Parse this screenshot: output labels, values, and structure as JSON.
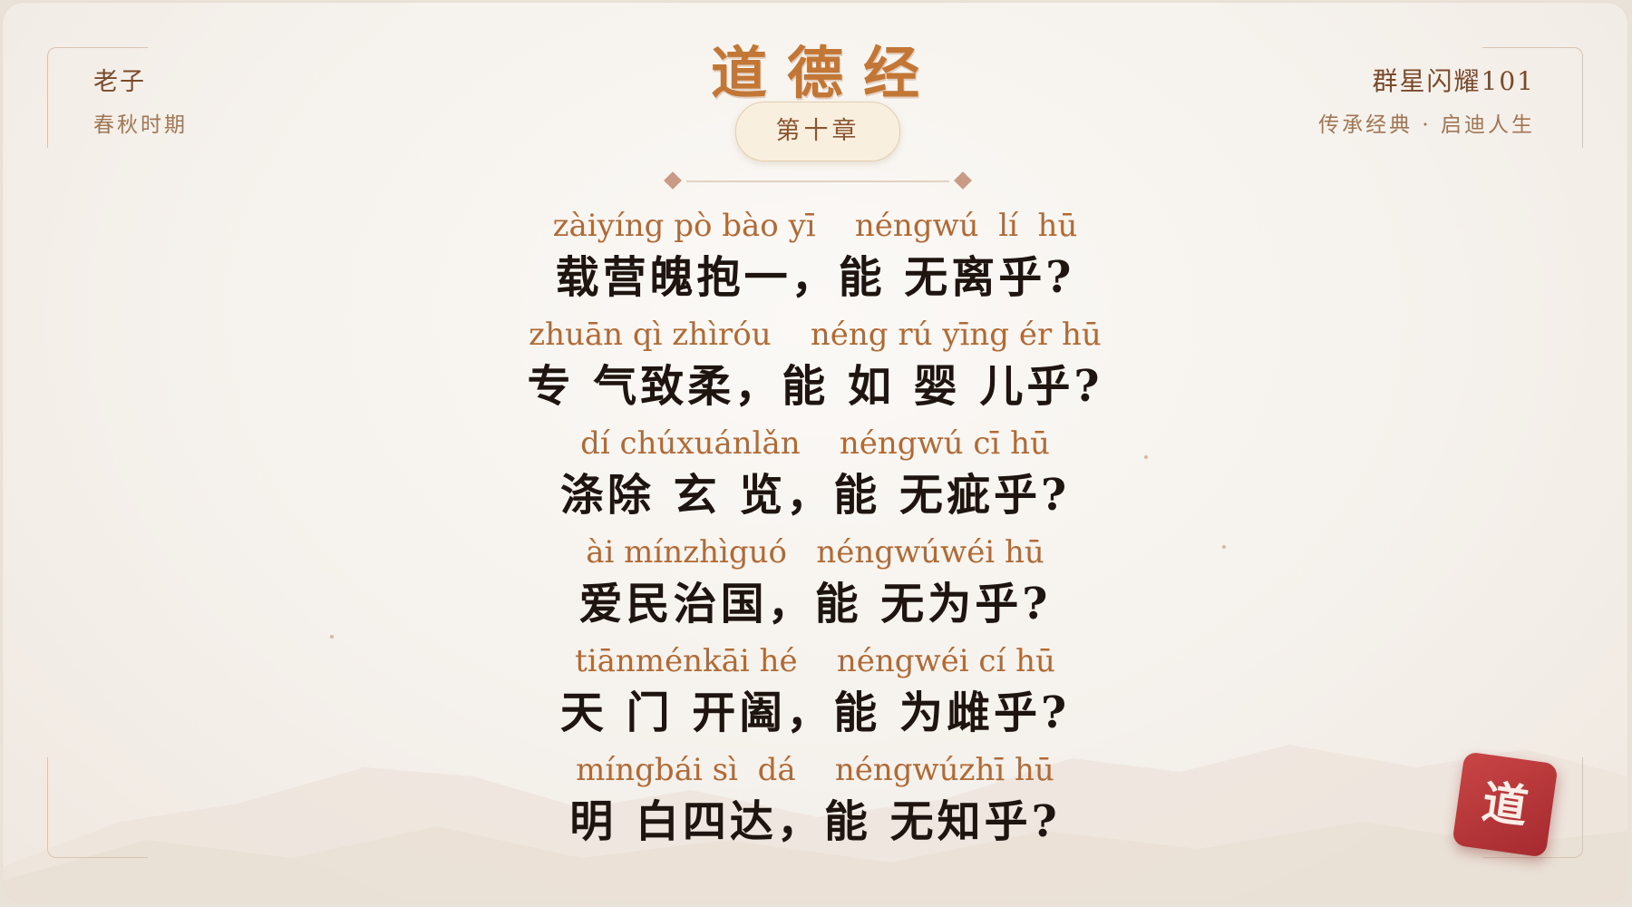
{
  "header": {
    "author": "老子",
    "era": "春秋时期",
    "title": "道德经",
    "chapter": "第十章",
    "brand": "群星闪耀101",
    "slogan": "传承经典 · 启迪人生"
  },
  "verses": [
    {
      "pinyin": "zàiyíng pò bào yī    néngwú  lí  hū",
      "hanzi": "载营魄抱一，能 无离乎?"
    },
    {
      "pinyin": "zhuān qì zhìróu    néng rú yīng ér hū",
      "hanzi": "专 气致柔，能 如 婴 儿乎?"
    },
    {
      "pinyin": "dí chúxuánlǎn    néngwú cī hū",
      "hanzi": "涤除 玄 览，能 无疵乎?"
    },
    {
      "pinyin": "ài mínzhìguó   néngwúwéi hū",
      "hanzi": "爱民治国，能 无为乎?"
    },
    {
      "pinyin": "tiānménkāi hé    néngwéi cí hū",
      "hanzi": "天 门 开阖，能 为雌乎?"
    },
    {
      "pinyin": "míngbái sì  dá    néngwúzhī hū",
      "hanzi": "明 白四达，能 无知乎?"
    }
  ],
  "seal": {
    "text": "道",
    "color": "#b83438"
  },
  "colors": {
    "title": "#c27737",
    "pinyin": "#b06a35",
    "hanzi": "#1e1410"
  }
}
